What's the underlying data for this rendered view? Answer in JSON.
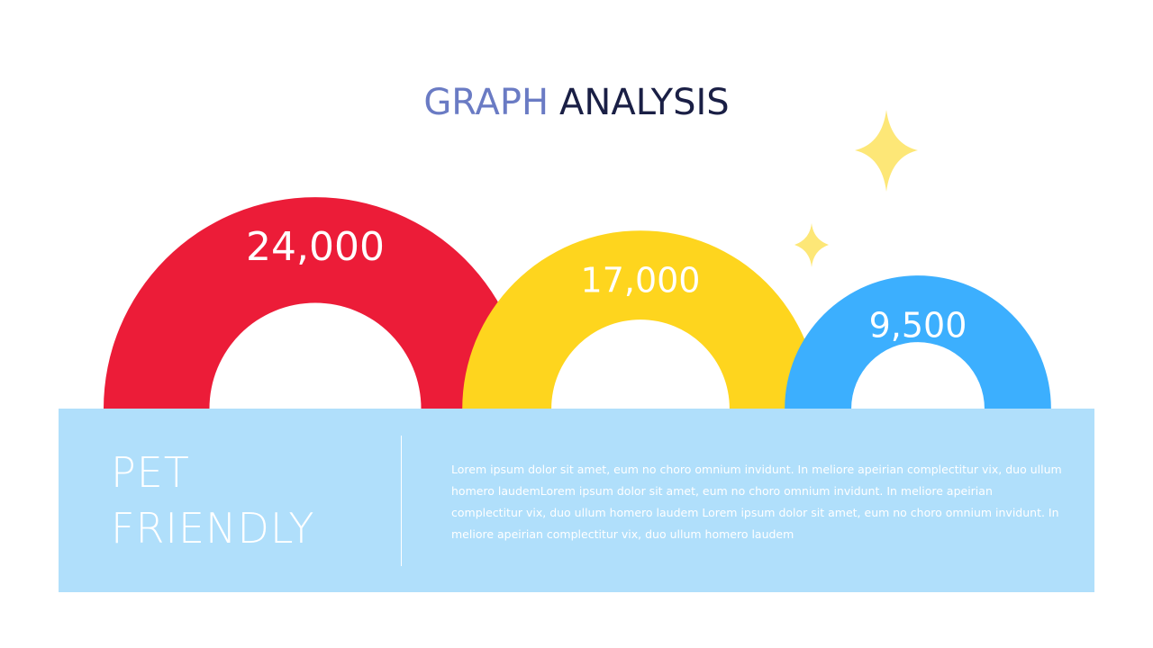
{
  "chart_data": {
    "type": "arc",
    "title": [
      "GRAPH",
      "ANALYSIS"
    ],
    "categories": [
      null,
      null,
      null
    ],
    "values": [
      24000,
      17000,
      9500
    ],
    "value_labels": [
      "24,000",
      "17,000",
      "9,500"
    ],
    "colors": [
      "#ec1c38",
      "#fed51e",
      "#3caffe"
    ]
  },
  "panel": {
    "heading": [
      "PET",
      "FRIENDLY"
    ],
    "body": "Lorem ipsum dolor sit amet, eum no choro omnium invidunt. In meliore apeirian complectitur vix, duo ullum homero laudemLorem ipsum dolor sit amet, eum no choro omnium invidunt. In meliore apeirian complectitur vix, duo ullum homero laudem Lorem ipsum dolor sit amet, eum no choro omnium invidunt. In meliore apeirian complectitur vix, duo ullum homero laudem"
  }
}
